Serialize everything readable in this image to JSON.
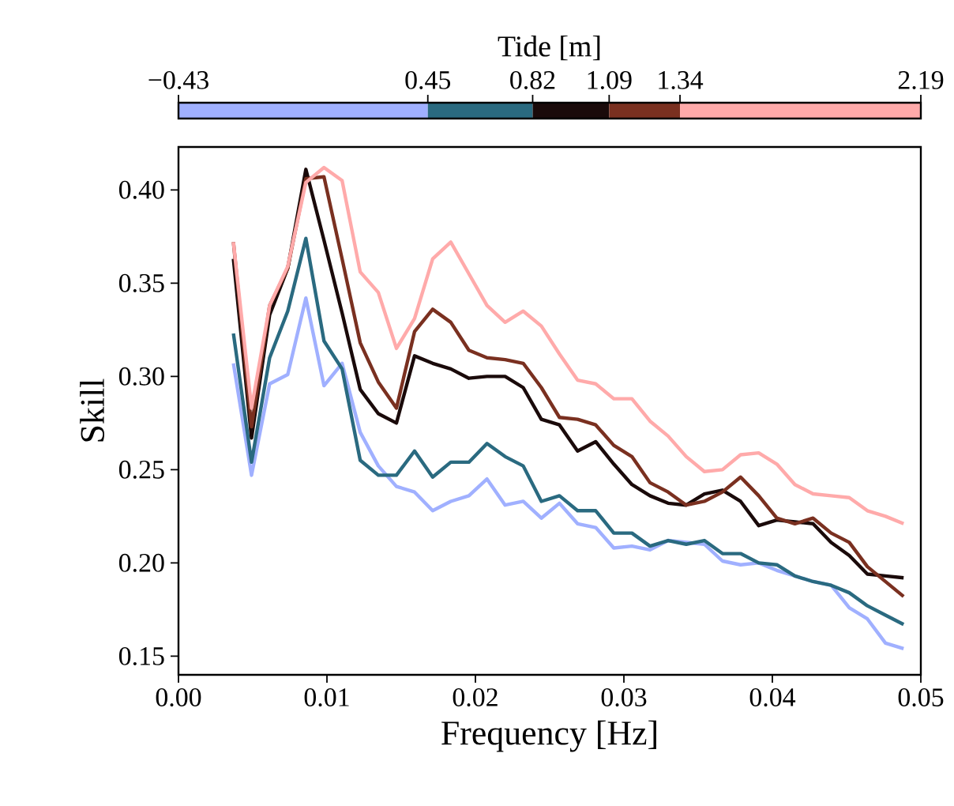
{
  "chart_data": {
    "type": "line",
    "xlabel": "Frequency [Hz]",
    "ylabel": "Skill",
    "clabel": "Tide [m]",
    "clim": [
      -0.43,
      2.19
    ],
    "cticks": [
      {
        "value": -0.43,
        "label": "−0.43"
      },
      0.45,
      0.82,
      1.09,
      1.34,
      2.19
    ],
    "xlim": [
      0,
      0.05
    ],
    "ylim": [
      0.14,
      0.423
    ],
    "xticks": [
      {
        "value": 0,
        "label": "0.00"
      },
      0.01,
      0.02,
      0.03,
      0.04,
      0.05
    ],
    "yticks": [
      0.15,
      {
        "value": 0.2,
        "label": "0.20"
      },
      0.25,
      {
        "value": 0.3,
        "label": "0.30"
      },
      0.35,
      {
        "value": 0.4,
        "label": "0.40"
      }
    ],
    "line_style": "solid",
    "x": [
      0.0037,
      0.00492,
      0.00614,
      0.00736,
      0.00858,
      0.0098,
      0.01102,
      0.01224,
      0.01346,
      0.01468,
      0.0159,
      0.01712,
      0.01834,
      0.01956,
      0.02078,
      0.022,
      0.02322,
      0.02444,
      0.02566,
      0.02688,
      0.0281,
      0.02932,
      0.03054,
      0.03176,
      0.03298,
      0.0342,
      0.03542,
      0.03664,
      0.03786,
      0.03908,
      0.0403,
      0.04152,
      0.04274,
      0.04396,
      0.04518,
      0.0464,
      0.04762,
      0.04884
    ],
    "series": [
      {
        "color": "#a0b0ff",
        "values": [
          0.307,
          0.247,
          0.296,
          0.301,
          0.342,
          0.295,
          0.307,
          0.27,
          0.252,
          0.241,
          0.238,
          0.228,
          0.233,
          0.236,
          0.245,
          0.231,
          0.233,
          0.224,
          0.232,
          0.221,
          0.219,
          0.208,
          0.209,
          0.207,
          0.212,
          0.211,
          0.21,
          0.201,
          0.199,
          0.2,
          0.196,
          0.193,
          0.19,
          0.188,
          0.176,
          0.17,
          0.157,
          0.154
        ]
      },
      {
        "color": "#2a6a80",
        "values": [
          0.323,
          0.254,
          0.31,
          0.335,
          0.374,
          0.319,
          0.304,
          0.255,
          0.247,
          0.247,
          0.26,
          0.246,
          0.254,
          0.254,
          0.264,
          0.257,
          0.252,
          0.233,
          0.236,
          0.228,
          0.228,
          0.216,
          0.216,
          0.209,
          0.212,
          0.21,
          0.212,
          0.205,
          0.205,
          0.2,
          0.199,
          0.193,
          0.19,
          0.188,
          0.184,
          0.177,
          0.172,
          0.167
        ]
      },
      {
        "color": "#1a0a0a",
        "values": [
          0.363,
          0.267,
          0.333,
          0.358,
          0.411,
          0.373,
          0.334,
          0.293,
          0.28,
          0.275,
          0.311,
          0.307,
          0.304,
          0.299,
          0.3,
          0.3,
          0.294,
          0.277,
          0.274,
          0.26,
          0.265,
          0.253,
          0.242,
          0.236,
          0.232,
          0.231,
          0.237,
          0.239,
          0.233,
          0.22,
          0.223,
          0.222,
          0.221,
          0.211,
          0.204,
          0.194,
          0.193,
          0.192
        ]
      },
      {
        "color": "#7a3020",
        "values": [
          0.372,
          0.273,
          0.338,
          0.358,
          0.406,
          0.407,
          0.363,
          0.318,
          0.297,
          0.283,
          0.324,
          0.336,
          0.329,
          0.314,
          0.31,
          0.309,
          0.307,
          0.294,
          0.278,
          0.277,
          0.274,
          0.263,
          0.257,
          0.243,
          0.238,
          0.231,
          0.233,
          0.238,
          0.246,
          0.236,
          0.224,
          0.221,
          0.224,
          0.216,
          0.211,
          0.198,
          0.19,
          0.182
        ]
      },
      {
        "color": "#ffaaaa",
        "values": [
          0.372,
          0.283,
          0.338,
          0.359,
          0.404,
          0.412,
          0.405,
          0.356,
          0.345,
          0.315,
          0.331,
          0.363,
          0.372,
          0.355,
          0.338,
          0.329,
          0.335,
          0.327,
          0.312,
          0.298,
          0.296,
          0.288,
          0.288,
          0.276,
          0.268,
          0.257,
          0.249,
          0.25,
          0.258,
          0.259,
          0.253,
          0.242,
          0.237,
          0.236,
          0.235,
          0.228,
          0.225,
          0.221
        ]
      }
    ]
  }
}
